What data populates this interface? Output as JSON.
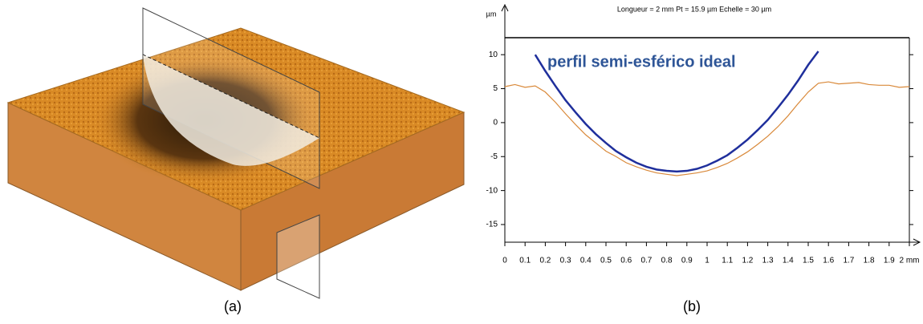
{
  "captions": [
    "(a)",
    "(b)"
  ],
  "chart_data": {
    "type": "line",
    "title": "Longueur = 2 mm  Pt = 15.9 µm  Echelle = 30 µm",
    "ylabel": "µm",
    "annotation": "perfil semi-esférico ideal",
    "x": [
      0,
      0.05,
      0.1,
      0.15,
      0.2,
      0.25,
      0.3,
      0.35,
      0.4,
      0.45,
      0.5,
      0.55,
      0.6,
      0.65,
      0.7,
      0.75,
      0.8,
      0.85,
      0.9,
      0.95,
      1,
      1.05,
      1.1,
      1.15,
      1.2,
      1.25,
      1.3,
      1.35,
      1.4,
      1.45,
      1.5,
      1.55,
      1.6,
      1.65,
      1.7,
      1.75,
      1.8,
      1.85,
      1.9,
      1.95,
      2
    ],
    "series": [
      {
        "color": "#d9893a",
        "values": [
          5.3,
          5.6,
          5.2,
          5.4,
          4.5,
          3,
          1.3,
          -0.3,
          -1.8,
          -3,
          -4.2,
          -5,
          -5.9,
          -6.5,
          -7,
          -7.4,
          -7.6,
          -7.8,
          -7.6,
          -7.4,
          -7.1,
          -6.6,
          -6,
          -5.2,
          -4.3,
          -3.2,
          -2,
          -0.6,
          1,
          2.8,
          4.5,
          5.8,
          6,
          5.7,
          5.8,
          5.9,
          5.6,
          5.5,
          5.5,
          5.2,
          5.3
        ]
      },
      {
        "color": "#1f2f9c",
        "values": [
          null,
          null,
          null,
          10,
          7.6,
          5.4,
          3.3,
          1.5,
          -0.2,
          -1.7,
          -3,
          -4.2,
          -5.1,
          -5.9,
          -6.5,
          -6.9,
          -7.1,
          -7.2,
          -7.1,
          -6.8,
          -6.3,
          -5.6,
          -4.8,
          -3.7,
          -2.5,
          -1.1,
          0.4,
          2.2,
          4.1,
          6.2,
          8.5,
          10.5,
          null,
          null,
          null,
          null,
          null,
          null,
          null,
          null,
          null
        ]
      }
    ],
    "xlim": [
      0,
      2
    ],
    "ylim": [
      -17.6,
      12.5
    ],
    "xticks": [
      0,
      0.1,
      0.2,
      0.3,
      0.4,
      0.5,
      0.6,
      0.7,
      0.8,
      0.9,
      1,
      1.1,
      1.2,
      1.3,
      1.4,
      1.5,
      1.6,
      1.7,
      1.8,
      1.9,
      {
        "value": 2,
        "label": "2 mm"
      }
    ],
    "yticks": [
      10,
      5,
      0,
      -5,
      -10,
      -15
    ]
  }
}
